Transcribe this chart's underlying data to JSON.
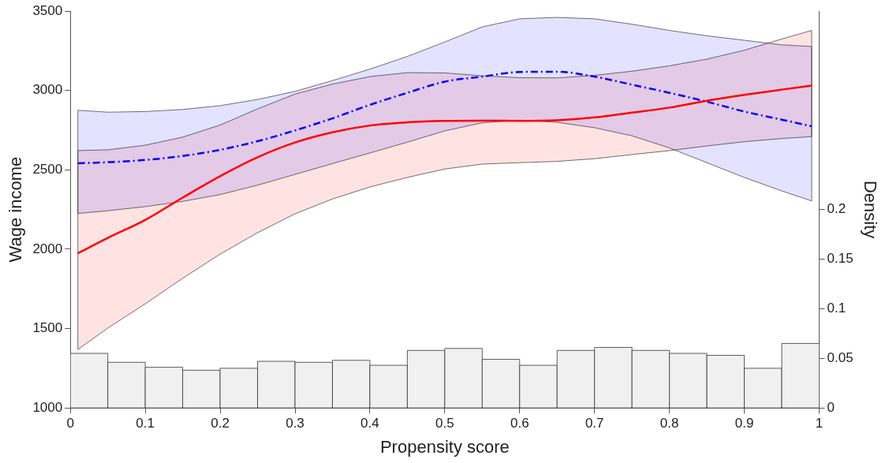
{
  "chart_data": {
    "type": "line",
    "xlabel": "Propensity score",
    "ylabel": "Wage income",
    "y2label": "Density",
    "marker": "none",
    "xlim": [
      0,
      1
    ],
    "xticks": [
      0,
      0.1,
      0.2,
      0.3,
      0.4,
      0.5,
      0.6,
      0.7,
      0.8,
      0.9,
      1
    ],
    "ylim": [
      1000,
      3500
    ],
    "yticks": [
      1000,
      1500,
      2000,
      2500,
      3000,
      3500
    ],
    "y2lim": [
      0,
      0.4
    ],
    "y2ticks": [
      0,
      0.05,
      0.1,
      0.15,
      0.2
    ],
    "series": [
      {
        "type": "histogram",
        "axis": "y2",
        "color": "#f0f0f0",
        "bins": [
          0,
          0.05,
          0.1,
          0.15,
          0.2,
          0.25,
          0.3,
          0.35,
          0.4,
          0.45,
          0.5,
          0.55,
          0.6,
          0.65,
          0.7,
          0.75,
          0.8,
          0.85,
          0.9,
          0.95,
          1
        ],
        "values": [
          0.055,
          0.046,
          0.041,
          0.038,
          0.04,
          0.047,
          0.046,
          0.048,
          0.043,
          0.058,
          0.06,
          0.049,
          0.043,
          0.058,
          0.061,
          0.058,
          0.055,
          0.053,
          0.04,
          0.065
        ]
      },
      {
        "color": "#ff0000",
        "line_style": "solid",
        "x": [
          0.01,
          0.05,
          0.1,
          0.15,
          0.2,
          0.25,
          0.3,
          0.35,
          0.4,
          0.45,
          0.5,
          0.55,
          0.6,
          0.65,
          0.7,
          0.75,
          0.8,
          0.85,
          0.9,
          0.95,
          0.99
        ],
        "values": [
          1974,
          2071,
          2184,
          2325,
          2460,
          2579,
          2672,
          2736,
          2779,
          2799,
          2808,
          2810,
          2808,
          2812,
          2830,
          2860,
          2892,
          2935,
          2972,
          3005,
          3031
        ],
        "lower": [
          1368,
          1503,
          1656,
          1817,
          1969,
          2104,
          2223,
          2316,
          2392,
          2452,
          2505,
          2536,
          2545,
          2553,
          2570,
          2596,
          2621,
          2650,
          2677,
          2697,
          2709
        ],
        "upper": [
          2621,
          2626,
          2655,
          2706,
          2782,
          2884,
          2977,
          3040,
          3087,
          3112,
          3110,
          3092,
          3080,
          3079,
          3095,
          3121,
          3155,
          3197,
          3253,
          3324,
          3378
        ]
      },
      {
        "color": "#0000ff",
        "line_style": "dashed",
        "x": [
          0.01,
          0.05,
          0.1,
          0.15,
          0.2,
          0.25,
          0.3,
          0.35,
          0.4,
          0.45,
          0.5,
          0.55,
          0.6,
          0.65,
          0.7,
          0.75,
          0.8,
          0.85,
          0.9,
          0.95,
          0.99
        ],
        "values": [
          2541,
          2548,
          2562,
          2587,
          2626,
          2680,
          2748,
          2824,
          2909,
          2985,
          3055,
          3087,
          3116,
          3118,
          3087,
          3036,
          2985,
          2929,
          2867,
          2816,
          2774
        ],
        "lower": [
          2225,
          2242,
          2268,
          2301,
          2344,
          2403,
          2471,
          2539,
          2606,
          2674,
          2745,
          2796,
          2813,
          2799,
          2765,
          2714,
          2638,
          2545,
          2452,
          2367,
          2304
        ],
        "upper": [
          2875,
          2863,
          2867,
          2880,
          2904,
          2943,
          2994,
          3062,
          3134,
          3214,
          3305,
          3400,
          3451,
          3460,
          3451,
          3417,
          3378,
          3344,
          3316,
          3287,
          3277
        ]
      }
    ]
  }
}
